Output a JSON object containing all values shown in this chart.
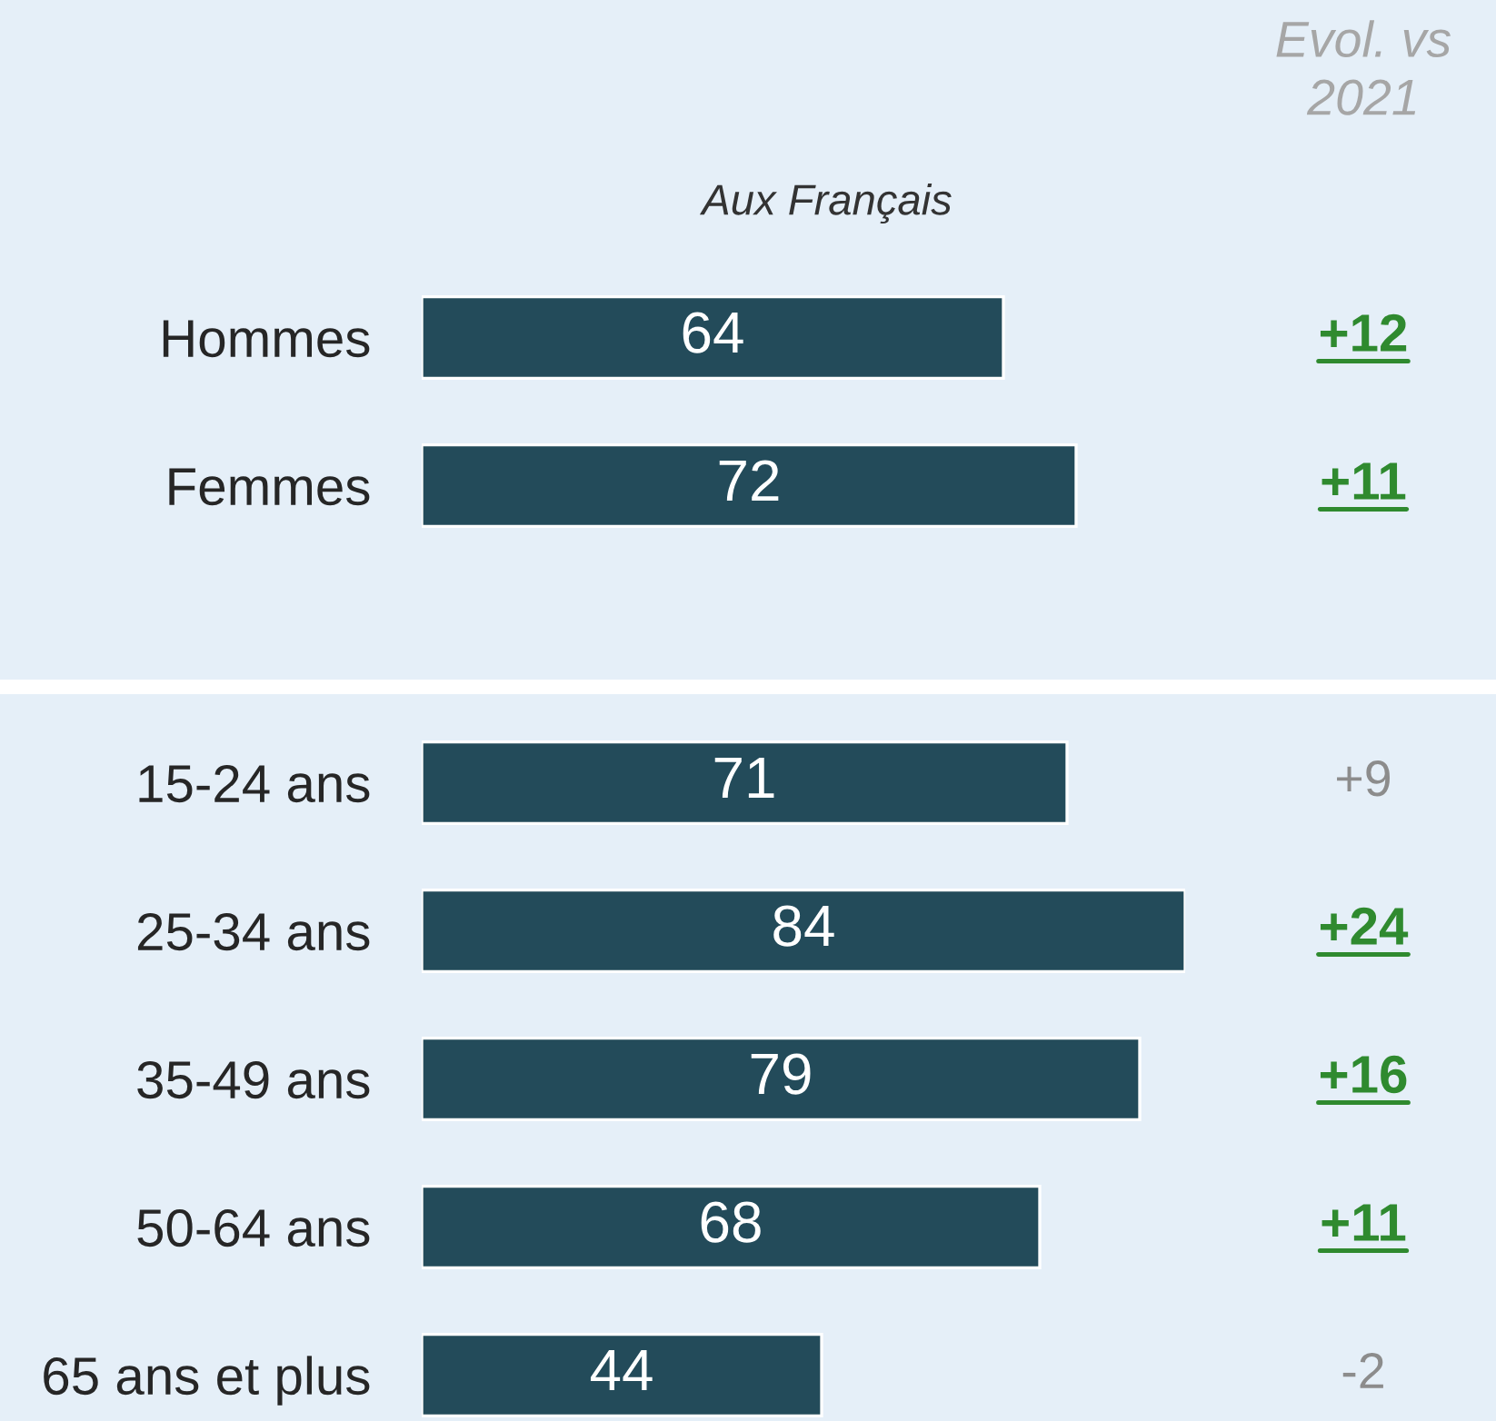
{
  "chart_data": [
    {
      "type": "bar",
      "orientation": "horizontal",
      "title": "Aux Français",
      "categories": [
        "Hommes",
        "Femmes"
      ],
      "values": [
        64,
        72
      ],
      "color": "#234b5a",
      "data_labels": true,
      "tick_labels": "y",
      "annotations": [
        "Evol. vs\n2021",
        "+12",
        "+11"
      ]
    },
    {
      "type": "bar",
      "orientation": "horizontal",
      "categories": [
        "15-24 ans",
        "25-34 ans",
        "35-49 ans",
        "50-64 ans",
        "65 ans et plus"
      ],
      "values": [
        71,
        84,
        79,
        68,
        44
      ],
      "color": "#234b5a",
      "data_labels": true,
      "tick_labels": "y",
      "annotations": [
        "+9",
        "+24",
        "+16",
        "+11",
        "-2"
      ]
    }
  ]
}
